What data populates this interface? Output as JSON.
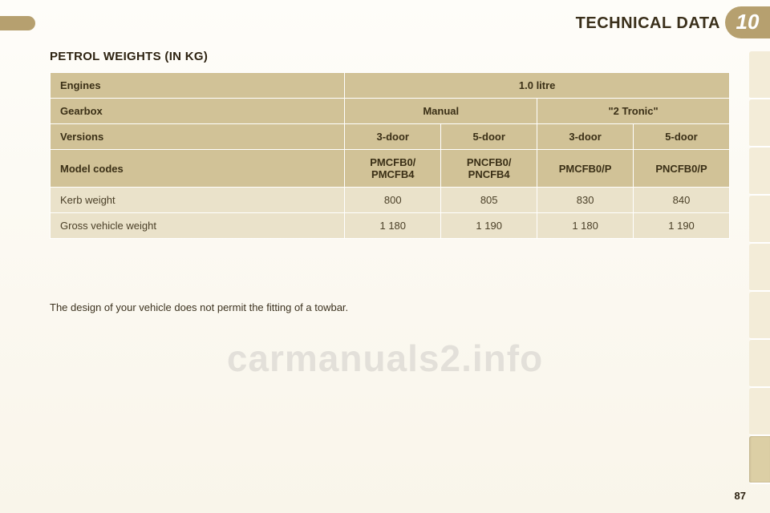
{
  "banner": {
    "title": "TECHNICAL DATA",
    "chapter": "10"
  },
  "section_title": "PETROL WEIGHTS (IN KG)",
  "table": {
    "rows": {
      "engines": {
        "label": "Engines",
        "span": "1.0 litre"
      },
      "gearbox": {
        "label": "Gearbox",
        "left": "Manual",
        "right": "\"2 Tronic\""
      },
      "versions": {
        "label": "Versions",
        "c1": "3-door",
        "c2": "5-door",
        "c3": "3-door",
        "c4": "5-door"
      },
      "model_codes": {
        "label": "Model codes",
        "c1": "PMCFB0/\nPMCFB4",
        "c2": "PNCFB0/\nPNCFB4",
        "c3": "PMCFB0/P",
        "c4": "PNCFB0/P"
      },
      "kerb": {
        "label": "Kerb weight",
        "c1": "800",
        "c2": "805",
        "c3": "830",
        "c4": "840"
      },
      "gvw": {
        "label": "Gross vehicle weight",
        "c1": "1 180",
        "c2": "1 190",
        "c3": "1 180",
        "c4": "1 190"
      }
    }
  },
  "note": "The design of your vehicle does not permit the fitting of a towbar.",
  "page_number": "87",
  "watermark": "carmanuals2.info",
  "colors": {
    "header_bg": "#d1c297",
    "data_bg": "#eae2ca",
    "accent": "#b6a06f",
    "text": "#3a2f16"
  },
  "tabs": {
    "count": 9,
    "active_index": 8
  }
}
